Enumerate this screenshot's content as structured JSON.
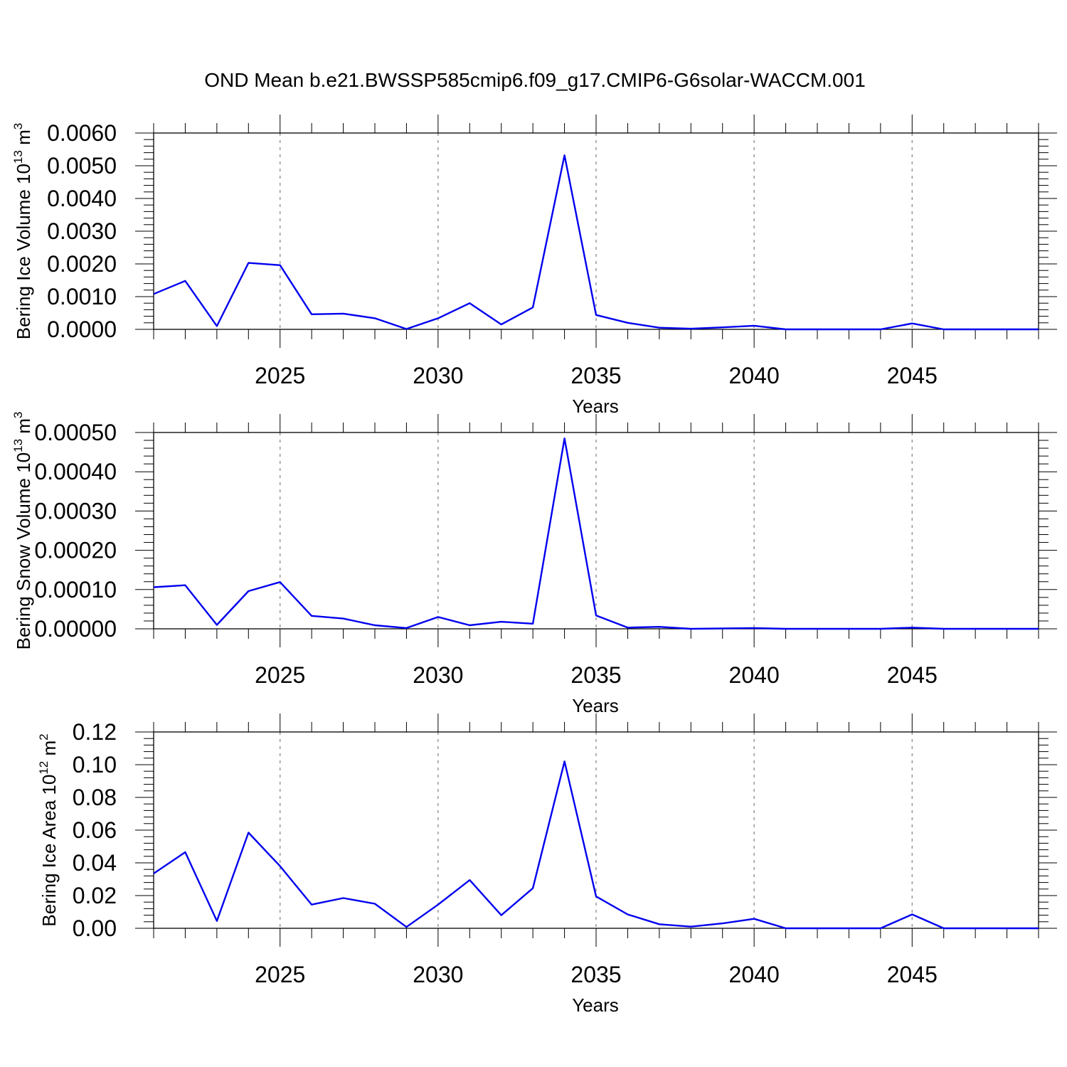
{
  "title": "OND Mean b.e21.BWSSP585cmip6.f09_g17.CMIP6-G6solar-WACCM.001",
  "colors": {
    "line": "#0000ee",
    "grid": "#888888",
    "axis": "#000000"
  },
  "chart_data": [
    {
      "type": "line",
      "xlabel": "Years",
      "ylabel": "Bering Ice Volume 10",
      "ylabel_exponent": "13",
      "ylabel_unit": " m",
      "ylabel_unit_exponent": "3",
      "xlim": [
        2021,
        2049
      ],
      "ylim": [
        0,
        0.006
      ],
      "yticks": [
        "0.0000",
        "0.0010",
        "0.0020",
        "0.0030",
        "0.0040",
        "0.0050",
        "0.0060"
      ],
      "xticks": [
        "2025",
        "2030",
        "2035",
        "2040",
        "2045"
      ],
      "grid": "vertical dashed at major x ticks",
      "x": [
        2021,
        2022,
        2023,
        2024,
        2025,
        2026,
        2027,
        2028,
        2029,
        2030,
        2031,
        2032,
        2033,
        2034,
        2035,
        2036,
        2037,
        2038,
        2039,
        2040,
        2041,
        2042,
        2043,
        2044,
        2045,
        2046,
        2047,
        2048,
        2049
      ],
      "values": [
        0.00108,
        0.00148,
        0.0001,
        0.00203,
        0.00196,
        0.00046,
        0.00048,
        0.00034,
        1e-05,
        0.00034,
        0.0008,
        0.00015,
        0.00067,
        0.00532,
        0.00044,
        0.0002,
        5e-05,
        2e-05,
        6e-05,
        0.00011,
        0.0,
        0.0,
        0.0,
        0.0,
        0.00018,
        0.0,
        0.0,
        0.0,
        0.0
      ]
    },
    {
      "type": "line",
      "xlabel": "Years",
      "ylabel": "Bering Snow Volume 10",
      "ylabel_exponent": "13",
      "ylabel_unit": " m",
      "ylabel_unit_exponent": "3",
      "xlim": [
        2021,
        2049
      ],
      "ylim": [
        0,
        0.0005
      ],
      "yticks": [
        "0.00000",
        "0.00010",
        "0.00020",
        "0.00030",
        "0.00040",
        "0.00050"
      ],
      "xticks": [
        "2025",
        "2030",
        "2035",
        "2040",
        "2045"
      ],
      "grid": "vertical dashed at major x ticks",
      "x": [
        2021,
        2022,
        2023,
        2024,
        2025,
        2026,
        2027,
        2028,
        2029,
        2030,
        2031,
        2032,
        2033,
        2034,
        2035,
        2036,
        2037,
        2038,
        2039,
        2040,
        2041,
        2042,
        2043,
        2044,
        2045,
        2046,
        2047,
        2048,
        2049
      ],
      "values": [
        0.000106,
        0.000111,
        1e-05,
        9.6e-05,
        0.000119,
        3.3e-05,
        2.6e-05,
        9e-06,
        2e-06,
        3e-05,
        9e-06,
        1.8e-05,
        1.3e-05,
        0.000485,
        3.4e-05,
        3e-06,
        5e-06,
        0.0,
        1e-06,
        2e-06,
        0.0,
        0.0,
        0.0,
        0.0,
        3e-06,
        0.0,
        0.0,
        0.0,
        0.0
      ]
    },
    {
      "type": "line",
      "xlabel": "Years",
      "ylabel": "Bering Ice Area 10",
      "ylabel_exponent": "12",
      "ylabel_unit": " m",
      "ylabel_unit_exponent": "2",
      "xlim": [
        2021,
        2049
      ],
      "ylim": [
        0,
        0.12
      ],
      "yticks": [
        "0.00",
        "0.02",
        "0.04",
        "0.06",
        "0.08",
        "0.10",
        "0.12"
      ],
      "xticks": [
        "2025",
        "2030",
        "2035",
        "2040",
        "2045"
      ],
      "grid": "vertical dashed at major x ticks",
      "x": [
        2021,
        2022,
        2023,
        2024,
        2025,
        2026,
        2027,
        2028,
        2029,
        2030,
        2031,
        2032,
        2033,
        2034,
        2035,
        2036,
        2037,
        2038,
        2039,
        2040,
        2041,
        2042,
        2043,
        2044,
        2045,
        2046,
        2047,
        2048,
        2049
      ],
      "values": [
        0.0335,
        0.0465,
        0.0045,
        0.0585,
        0.038,
        0.0145,
        0.0185,
        0.015,
        0.0008,
        0.0145,
        0.0295,
        0.008,
        0.0245,
        0.102,
        0.0195,
        0.0085,
        0.0025,
        0.001,
        0.003,
        0.0058,
        0.0,
        0.0,
        0.0,
        0.0,
        0.0085,
        0.0,
        0.0,
        0.0,
        0.0
      ]
    }
  ]
}
